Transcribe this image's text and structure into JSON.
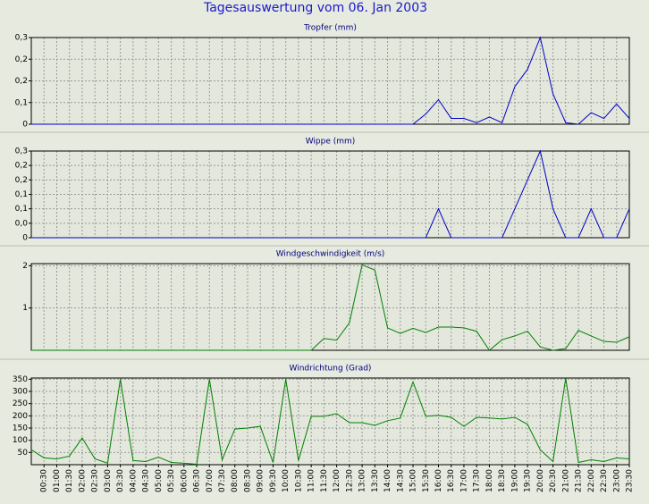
{
  "title": "Tagesauswertung vom 06. Jan 2003",
  "chart_data": [
    {
      "type": "line",
      "title": "Tropfer (mm)",
      "color": "#0000c8",
      "grid": true,
      "ylim": [
        0,
        0.3
      ],
      "yticks": [
        0,
        {
          "value": 0.075,
          "label": "0,1"
        },
        {
          "value": 0.15,
          "label": "0,2"
        },
        {
          "value": 0.225,
          "label": "0,2"
        },
        {
          "value": 0.3,
          "label": "0,3"
        }
      ],
      "values": [
        0,
        0,
        0,
        0,
        0,
        0,
        0,
        0,
        0,
        0,
        0,
        0,
        0,
        0,
        0,
        0,
        0,
        0,
        0,
        0,
        0,
        0,
        0,
        0,
        0,
        0,
        0,
        0,
        0,
        0,
        0,
        0.035,
        0.085,
        0.02,
        0.02,
        0.005,
        0.025,
        0.005,
        0.13,
        0.19,
        0.3,
        0.105,
        0.005,
        0,
        0.04,
        0.02,
        0.07,
        0.02
      ]
    },
    {
      "type": "line",
      "title": "Wippe (mm)",
      "color": "#0000c8",
      "grid": true,
      "ylim": [
        0,
        0.3
      ],
      "yticks": [
        0,
        {
          "value": 0.05,
          "label": "0,0"
        },
        {
          "value": 0.1,
          "label": "0,1"
        },
        {
          "value": 0.15,
          "label": "0,1"
        },
        {
          "value": 0.2,
          "label": "0,2"
        },
        {
          "value": 0.25,
          "label": "0,2"
        },
        {
          "value": 0.3,
          "label": "0,3"
        }
      ],
      "values": [
        0,
        0,
        0,
        0,
        0,
        0,
        0,
        0,
        0,
        0,
        0,
        0,
        0,
        0,
        0,
        0,
        0,
        0,
        0,
        0,
        0,
        0,
        0,
        0,
        0,
        0,
        0,
        0,
        0,
        0,
        0,
        0,
        0.1,
        0,
        0,
        0,
        0,
        0,
        0.1,
        0.2,
        0.3,
        0.1,
        0,
        0,
        0.1,
        0,
        0,
        0.1
      ]
    },
    {
      "type": "line",
      "title": "Windgeschwindigkeit (m/s)",
      "color": "#008000",
      "grid": true,
      "ylim": [
        0,
        2.05
      ],
      "yticks": [
        1,
        2
      ],
      "values": [
        0,
        0,
        0,
        0,
        0,
        0,
        0,
        0,
        0,
        0,
        0,
        0,
        0,
        0,
        0,
        0,
        0,
        0,
        0,
        0,
        0,
        0,
        0,
        0.28,
        0.24,
        0.65,
        2.02,
        1.9,
        0.53,
        0.4,
        0.52,
        0.42,
        0.55,
        0.55,
        0.53,
        0.45,
        0,
        0.25,
        0.34,
        0.45,
        0.08,
        0,
        0.04,
        0.47,
        0.34,
        0.21,
        0.19,
        0.32
      ]
    },
    {
      "type": "line",
      "title": "Windrichtung (Grad)",
      "color": "#008000",
      "grid": true,
      "ylim": [
        0,
        355
      ],
      "yticks": [
        50,
        100,
        150,
        200,
        250,
        300,
        350
      ],
      "categories": [
        null,
        "00:30",
        "01:00",
        "01:30",
        "02:00",
        "02:30",
        "03:00",
        "03:30",
        "04:00",
        "04:30",
        "05:00",
        "05:30",
        "06:00",
        "06:30",
        "07:00",
        "07:30",
        "08:00",
        "08:30",
        "09:00",
        "09:30",
        "10:00",
        "10:30",
        "11:00",
        "11:30",
        "12:00",
        "12:30",
        "13:00",
        "13:30",
        "14:00",
        "14:30",
        "15:00",
        "15:30",
        "16:00",
        "16:30",
        "17:00",
        "17:30",
        "18:00",
        "18:30",
        "19:00",
        "19:30",
        "20:00",
        "20:30",
        "21:00",
        "21:30",
        "22:00",
        "22:30",
        "23:00",
        "23:30"
      ],
      "values": [
        61,
        28,
        24,
        35,
        109,
        24,
        6,
        350,
        17,
        13,
        31,
        9,
        6,
        2,
        350,
        20,
        146,
        150,
        157,
        9,
        350,
        17,
        198,
        198,
        209,
        172,
        172,
        161,
        180,
        191,
        339,
        198,
        202,
        194,
        157,
        194,
        191,
        187,
        194,
        165,
        61,
        13,
        354,
        9,
        20,
        13,
        28,
        24
      ]
    }
  ]
}
